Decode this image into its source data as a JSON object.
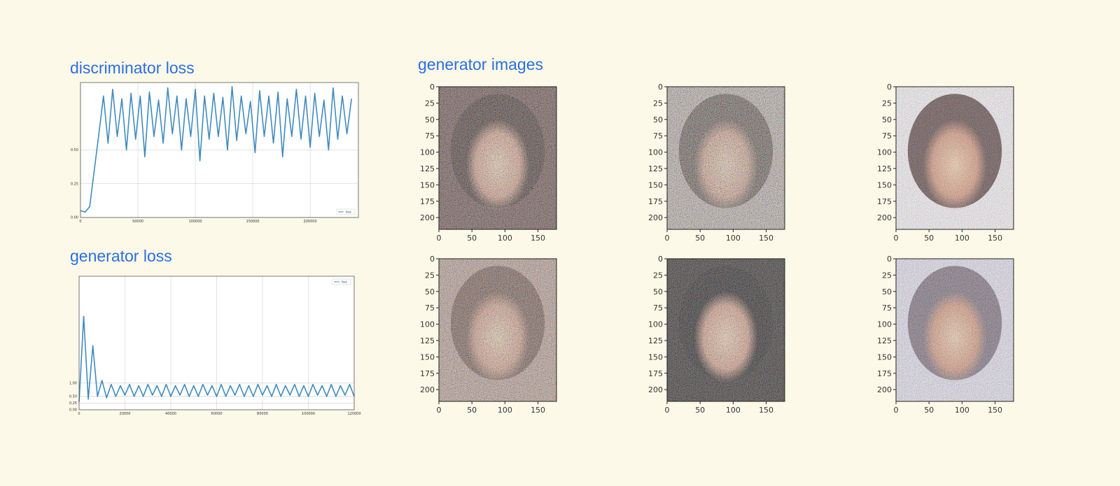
{
  "chart_data": [
    {
      "type": "line",
      "title": "discriminator loss",
      "x": [
        0,
        4000,
        8000,
        12000,
        16000,
        20000,
        24000,
        28000,
        32000,
        36000,
        40000,
        44000,
        48000,
        52000,
        56000,
        60000,
        64000,
        68000,
        72000,
        76000,
        80000,
        84000,
        88000,
        92000,
        96000,
        100000,
        104000,
        108000,
        112000,
        116000,
        120000,
        124000,
        128000,
        132000,
        136000,
        140000,
        144000,
        148000,
        152000,
        156000,
        160000,
        164000,
        168000,
        172000,
        176000,
        180000,
        184000,
        188000,
        192000,
        196000,
        200000,
        204000,
        208000,
        212000,
        216000,
        220000,
        224000,
        228000,
        232000,
        236000
      ],
      "series": [
        {
          "name": "loss",
          "color": "#1f77b4",
          "values": [
            0.05,
            0.04,
            0.08,
            0.35,
            0.62,
            0.9,
            0.55,
            0.95,
            0.6,
            0.88,
            0.5,
            0.92,
            0.58,
            0.9,
            0.45,
            0.93,
            0.6,
            0.87,
            0.55,
            0.96,
            0.62,
            0.9,
            0.5,
            0.88,
            0.6,
            0.95,
            0.42,
            0.9,
            0.58,
            0.92,
            0.6,
            0.89,
            0.5,
            0.97,
            0.57,
            0.9,
            0.62,
            0.86,
            0.48,
            0.94,
            0.6,
            0.9,
            0.55,
            0.93,
            0.45,
            0.88,
            0.6,
            0.95,
            0.58,
            0.9,
            0.52,
            0.92,
            0.6,
            0.87,
            0.5,
            0.96,
            0.58,
            0.9,
            0.62,
            0.88
          ]
        }
      ],
      "xlim": [
        0,
        242000
      ],
      "ylim": [
        0,
        1
      ],
      "xticks": [
        0,
        50000,
        100000,
        150000,
        200000
      ],
      "yticks": [
        {
          "value": 0,
          "label": "0.00"
        },
        {
          "value": 0.25,
          "label": "0.25"
        },
        {
          "value": 0.5,
          "label": "0.50"
        }
      ],
      "grid": true,
      "legend": "lower right"
    },
    {
      "type": "line",
      "title": "generator loss",
      "x": [
        0,
        2000,
        4000,
        6000,
        8000,
        10000,
        12000,
        14000,
        16000,
        18000,
        20000,
        22000,
        24000,
        26000,
        28000,
        30000,
        32000,
        34000,
        36000,
        38000,
        40000,
        42000,
        44000,
        46000,
        48000,
        50000,
        52000,
        54000,
        56000,
        58000,
        60000,
        62000,
        64000,
        66000,
        68000,
        70000,
        72000,
        74000,
        76000,
        78000,
        80000,
        82000,
        84000,
        86000,
        88000,
        90000,
        92000,
        94000,
        96000,
        98000,
        100000,
        102000,
        104000,
        106000,
        108000,
        110000,
        112000,
        114000,
        116000,
        118000,
        120000
      ],
      "series": [
        {
          "name": "loss",
          "color": "#1f77b4",
          "values": [
            0.3,
            3.5,
            0.4,
            2.4,
            0.5,
            1.1,
            0.45,
            0.95,
            0.5,
            0.9,
            0.55,
            0.95,
            0.5,
            0.9,
            0.5,
            0.95,
            0.55,
            0.9,
            0.5,
            0.95,
            0.5,
            0.9,
            0.55,
            0.95,
            0.5,
            0.9,
            0.5,
            0.95,
            0.55,
            0.9,
            0.5,
            0.95,
            0.5,
            0.9,
            0.55,
            0.95,
            0.5,
            0.9,
            0.5,
            0.95,
            0.55,
            0.9,
            0.5,
            0.95,
            0.5,
            0.9,
            0.55,
            0.95,
            0.5,
            0.9,
            0.5,
            0.95,
            0.55,
            0.9,
            0.5,
            0.95,
            0.5,
            0.9,
            0.55,
            0.95,
            0.5
          ]
        }
      ],
      "xlim": [
        0,
        120000
      ],
      "ylim": [
        0,
        5
      ],
      "xticks": [
        0,
        20000,
        40000,
        60000,
        80000,
        100000,
        120000
      ],
      "yticks": [
        {
          "value": 0,
          "label": "0.00"
        },
        {
          "value": 0.25,
          "label": "0.25"
        },
        {
          "value": 0.5,
          "label": "0.50"
        },
        {
          "value": 1,
          "label": "1.00"
        }
      ],
      "grid": true,
      "legend": "upper right"
    },
    {
      "type": "image",
      "title": "generator images",
      "xlim": [
        0,
        178
      ],
      "ylim": [
        218,
        0
      ],
      "xticks": [
        0,
        50,
        100,
        150
      ],
      "yticks": [
        0,
        25,
        50,
        75,
        100,
        125,
        150,
        175,
        200
      ]
    }
  ]
}
